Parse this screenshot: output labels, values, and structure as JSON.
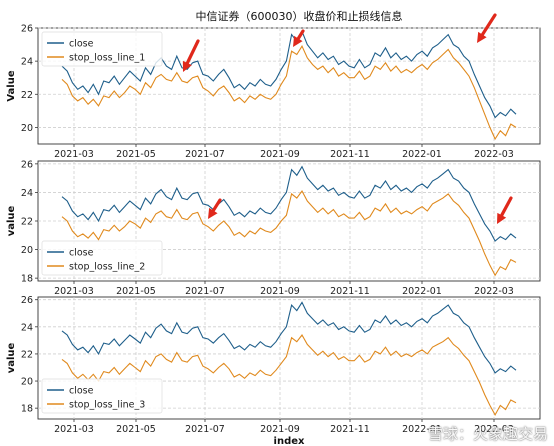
{
  "chart_data": [
    {
      "type": "line",
      "title": "中信证券（600030）收盘价和止损线信息",
      "xlabel": "",
      "ylabel": "Value",
      "x_ticks": [
        "2021-03",
        "2021-05",
        "2021-07",
        "2021-09",
        "2021-11",
        "2022-01",
        "2022-03"
      ],
      "y_ticks": [
        20,
        22,
        24,
        26
      ],
      "ylim": [
        19,
        26
      ],
      "grid": true,
      "legend_position": "top-left",
      "series": [
        {
          "name": "close",
          "color": "#1f5f8b",
          "values": [
            23.7,
            23.4,
            22.7,
            22.3,
            22.5,
            22.1,
            22.6,
            22.0,
            22.8,
            22.7,
            23.1,
            22.6,
            23.0,
            23.4,
            23.1,
            22.8,
            23.6,
            23.2,
            23.9,
            24.2,
            23.7,
            23.5,
            24.3,
            23.6,
            23.5,
            23.9,
            24.0,
            23.2,
            23.1,
            22.8,
            23.2,
            23.5,
            23.0,
            22.4,
            22.6,
            22.3,
            22.7,
            22.5,
            22.9,
            22.6,
            22.5,
            22.9,
            23.5,
            24.0,
            25.6,
            25.2,
            25.8,
            25.0,
            24.6,
            24.2,
            24.5,
            24.1,
            24.3,
            23.8,
            24.0,
            23.7,
            23.6,
            24.1,
            23.6,
            23.8,
            24.5,
            24.3,
            24.8,
            24.2,
            24.5,
            24.1,
            24.3,
            24.0,
            24.4,
            24.6,
            24.3,
            24.8,
            25.0,
            25.3,
            25.6,
            25.0,
            24.8,
            24.3,
            24.0,
            23.2,
            22.5,
            21.8,
            21.3,
            20.6,
            20.9,
            20.7,
            21.1,
            20.8
          ]
        },
        {
          "name": "stop_loss_line_1",
          "color": "#e08a1e",
          "values": [
            22.9,
            22.6,
            21.9,
            21.6,
            21.8,
            21.4,
            21.7,
            21.3,
            21.9,
            21.8,
            22.2,
            21.8,
            22.1,
            22.5,
            22.3,
            22.0,
            22.7,
            22.4,
            23.0,
            23.2,
            22.9,
            22.8,
            23.3,
            22.8,
            22.7,
            23.0,
            23.1,
            22.4,
            22.2,
            21.9,
            22.3,
            22.5,
            22.1,
            21.6,
            21.8,
            21.5,
            21.9,
            21.7,
            22.0,
            21.8,
            21.7,
            22.0,
            22.6,
            23.1,
            24.6,
            24.4,
            24.9,
            24.2,
            23.8,
            23.5,
            23.7,
            23.3,
            23.6,
            23.1,
            23.3,
            23.0,
            23.0,
            23.4,
            22.9,
            23.1,
            23.7,
            23.5,
            23.9,
            23.4,
            23.7,
            23.3,
            23.5,
            23.3,
            23.6,
            23.8,
            23.5,
            23.9,
            24.1,
            24.4,
            24.7,
            24.2,
            23.9,
            23.5,
            23.1,
            22.4,
            21.6,
            20.8,
            20.0,
            19.3,
            19.8,
            19.5,
            20.2,
            20.0
          ]
        }
      ],
      "annotations": [
        "red arrow near 2021-06",
        "red arrow near 2021-09",
        "red arrow near 2022-02"
      ]
    },
    {
      "type": "line",
      "title": "",
      "xlabel": "",
      "ylabel": "value",
      "x_ticks": [
        "2021-03",
        "2021-05",
        "2021-07",
        "2021-09",
        "2021-11",
        "2022-01",
        "2022-03"
      ],
      "y_ticks": [
        18,
        20,
        22,
        24,
        26
      ],
      "ylim": [
        17.8,
        26.2
      ],
      "grid": true,
      "legend_position": "bottom-left",
      "series": [
        {
          "name": "close",
          "color": "#1f5f8b",
          "values": [
            23.7,
            23.4,
            22.7,
            22.3,
            22.5,
            22.1,
            22.6,
            22.0,
            22.8,
            22.7,
            23.1,
            22.6,
            23.0,
            23.4,
            23.1,
            22.8,
            23.6,
            23.2,
            23.9,
            24.2,
            23.7,
            23.5,
            24.3,
            23.6,
            23.5,
            23.9,
            24.0,
            23.2,
            23.1,
            22.8,
            23.2,
            23.5,
            23.0,
            22.4,
            22.6,
            22.3,
            22.7,
            22.5,
            22.9,
            22.6,
            22.5,
            22.9,
            23.5,
            24.0,
            25.6,
            25.2,
            25.8,
            25.0,
            24.6,
            24.2,
            24.5,
            24.1,
            24.3,
            23.8,
            24.0,
            23.7,
            23.6,
            24.1,
            23.6,
            23.8,
            24.5,
            24.3,
            24.8,
            24.2,
            24.5,
            24.1,
            24.3,
            24.0,
            24.4,
            24.6,
            24.3,
            24.8,
            25.0,
            25.3,
            25.6,
            25.0,
            24.8,
            24.3,
            24.0,
            23.2,
            22.5,
            21.8,
            21.3,
            20.6,
            20.9,
            20.7,
            21.1,
            20.8
          ]
        },
        {
          "name": "stop_loss_line_2",
          "color": "#e08a1e",
          "values": [
            22.3,
            22.0,
            21.3,
            20.9,
            21.1,
            20.8,
            21.2,
            20.7,
            21.4,
            21.3,
            21.7,
            21.3,
            21.6,
            22.0,
            21.8,
            21.5,
            22.2,
            21.9,
            22.5,
            22.7,
            22.3,
            22.2,
            22.8,
            22.2,
            22.1,
            22.5,
            22.6,
            21.8,
            21.6,
            21.3,
            21.7,
            22.0,
            21.6,
            21.0,
            21.2,
            20.9,
            21.3,
            21.1,
            21.5,
            21.3,
            21.2,
            21.5,
            22.0,
            22.4,
            23.9,
            23.6,
            24.1,
            23.4,
            23.0,
            22.6,
            22.9,
            22.5,
            22.8,
            22.3,
            22.5,
            22.2,
            22.2,
            22.6,
            22.1,
            22.3,
            22.9,
            22.7,
            23.2,
            22.6,
            22.9,
            22.5,
            22.7,
            22.5,
            22.8,
            23.0,
            22.7,
            23.2,
            23.4,
            23.6,
            23.9,
            23.4,
            23.1,
            22.6,
            22.2,
            21.4,
            20.6,
            19.7,
            18.9,
            18.2,
            18.8,
            18.6,
            19.3,
            19.1
          ]
        }
      ],
      "annotations": [
        "red arrow near 2021-07",
        "red arrow near 2022-03"
      ]
    },
    {
      "type": "line",
      "title": "",
      "xlabel": "index",
      "ylabel": "value",
      "x_ticks": [
        "2021-03",
        "2021-05",
        "2021-07",
        "2021-09",
        "2021-11",
        "2022-01",
        "2022-03"
      ],
      "y_ticks": [
        18,
        20,
        22,
        24,
        26
      ],
      "ylim": [
        17.2,
        26.2
      ],
      "grid": true,
      "legend_position": "bottom-left",
      "series": [
        {
          "name": "close",
          "color": "#1f5f8b",
          "values": [
            23.7,
            23.4,
            22.7,
            22.3,
            22.5,
            22.1,
            22.6,
            22.0,
            22.8,
            22.7,
            23.1,
            22.6,
            23.0,
            23.4,
            23.1,
            22.8,
            23.6,
            23.2,
            23.9,
            24.2,
            23.7,
            23.5,
            24.3,
            23.6,
            23.5,
            23.9,
            24.0,
            23.2,
            23.1,
            22.8,
            23.2,
            23.5,
            23.0,
            22.4,
            22.6,
            22.3,
            22.7,
            22.5,
            22.9,
            22.6,
            22.5,
            22.9,
            23.5,
            24.0,
            25.6,
            25.2,
            25.8,
            25.0,
            24.6,
            24.2,
            24.5,
            24.1,
            24.3,
            23.8,
            24.0,
            23.7,
            23.6,
            24.1,
            23.6,
            23.8,
            24.5,
            24.3,
            24.8,
            24.2,
            24.5,
            24.1,
            24.3,
            24.0,
            24.4,
            24.6,
            24.3,
            24.8,
            25.0,
            25.3,
            25.6,
            25.0,
            24.8,
            24.3,
            24.0,
            23.2,
            22.5,
            21.8,
            21.3,
            20.6,
            20.9,
            20.7,
            21.1,
            20.8
          ]
        },
        {
          "name": "stop_loss_line_3",
          "color": "#e08a1e",
          "values": [
            21.6,
            21.3,
            20.6,
            20.2,
            20.5,
            20.1,
            20.5,
            20.0,
            20.7,
            20.6,
            21.0,
            20.5,
            20.9,
            21.3,
            21.0,
            20.7,
            21.5,
            21.1,
            21.8,
            22.0,
            21.6,
            21.4,
            22.1,
            21.5,
            21.4,
            21.8,
            21.9,
            21.1,
            20.9,
            20.6,
            21.0,
            21.3,
            20.9,
            20.3,
            20.5,
            20.2,
            20.6,
            20.4,
            20.8,
            20.5,
            20.4,
            20.8,
            21.3,
            21.8,
            23.2,
            22.9,
            23.4,
            22.7,
            22.3,
            21.9,
            22.2,
            21.8,
            22.1,
            21.6,
            21.8,
            21.5,
            21.5,
            21.9,
            21.4,
            21.6,
            22.2,
            22.0,
            22.5,
            21.9,
            22.2,
            21.8,
            22.0,
            21.8,
            22.1,
            22.3,
            22.0,
            22.5,
            22.7,
            22.9,
            23.2,
            22.7,
            22.4,
            21.9,
            21.5,
            20.7,
            19.9,
            19.0,
            18.2,
            17.5,
            18.2,
            17.9,
            18.6,
            18.4
          ]
        }
      ],
      "annotations": []
    }
  ],
  "watermark": "雪球：火象趣交易"
}
